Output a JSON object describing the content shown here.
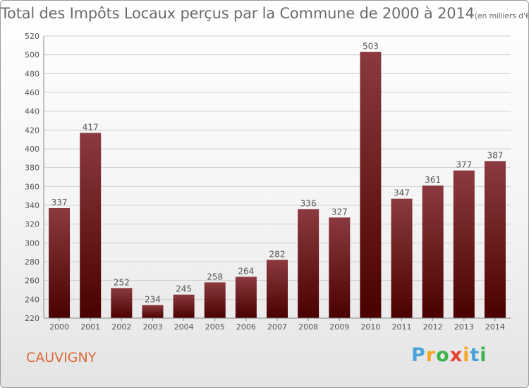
{
  "header": {
    "title": "Total des Impôts Locaux perçus par la Commune de 2000 à 2014",
    "unit": "(en milliers d'€)"
  },
  "footer": {
    "commune": "CAUVIGNY",
    "logo_letters": [
      "P",
      "r",
      "o",
      "x",
      "i",
      "t",
      "i"
    ],
    "logo_colors": [
      "#4aa3d8",
      "#f5a623",
      "#3cb44b",
      "#e8412c",
      "#f5a623",
      "#4aa3d8",
      "#3cb44b"
    ]
  },
  "colors": {
    "bar_top": "#8b3a3f",
    "bar_bottom": "#4a0000",
    "grid": "#d0d0d0",
    "text": "#555555",
    "title": "#6b6b6b",
    "commune": "#d96a3a"
  },
  "chart_data": {
    "type": "bar",
    "title": "Total des Impôts Locaux perçus par la Commune de 2000 à 2014",
    "xlabel": "",
    "ylabel": "",
    "categories": [
      "2000",
      "2001",
      "2002",
      "2003",
      "2004",
      "2005",
      "2006",
      "2007",
      "2008",
      "2009",
      "2010",
      "2011",
      "2012",
      "2013",
      "2014"
    ],
    "values": [
      337,
      417,
      252,
      234,
      245,
      258,
      264,
      282,
      336,
      327,
      503,
      347,
      361,
      377,
      387
    ],
    "ylim": [
      220,
      520
    ],
    "yticks": [
      220,
      240,
      260,
      280,
      300,
      320,
      340,
      360,
      380,
      400,
      420,
      440,
      460,
      480,
      500,
      520
    ],
    "grid": true
  }
}
